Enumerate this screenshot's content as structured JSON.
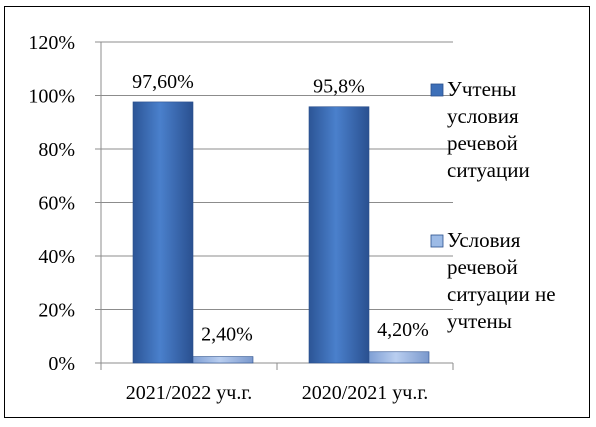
{
  "chart_data": {
    "type": "bar",
    "categories": [
      "2021/2022 уч.г.",
      "2020/2021 уч.г."
    ],
    "series": [
      {
        "name": "Учтены условия речевой ситуации",
        "legend_lines": [
          "Учтены",
          "условия",
          "речевой",
          "ситуации"
        ],
        "values": [
          97.6,
          95.8
        ],
        "labels": [
          "97,60%",
          "95,8%"
        ],
        "color": "#3D6FB8"
      },
      {
        "name": "Условия речевой ситуации не учтены",
        "legend_lines": [
          "Условия",
          "речевой",
          "ситуации не",
          "учтены"
        ],
        "values": [
          2.4,
          4.2
        ],
        "labels": [
          "2,40%",
          "4,20%"
        ],
        "color": "#8FB0E0"
      }
    ],
    "ylim": [
      0,
      120
    ],
    "yticks": [
      "0%",
      "20%",
      "40%",
      "60%",
      "80%",
      "100%",
      "120%"
    ],
    "grid": true,
    "legend_position": "right",
    "title": "",
    "xlabel": "",
    "ylabel": ""
  }
}
